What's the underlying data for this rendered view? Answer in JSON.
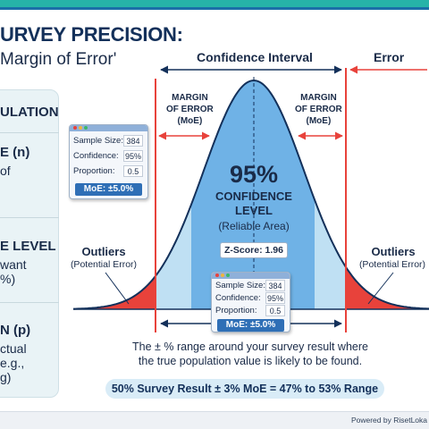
{
  "header": {
    "title": "URVEY PRECISION:",
    "subtitle": "Margin of Error'"
  },
  "side_panel": {
    "sections": [
      {
        "heading": "ULATION"
      },
      {
        "heading": "E (n)",
        "lines": [
          "of"
        ]
      },
      {
        "heading": "E LEVEL",
        "lines": [
          "want",
          "%)"
        ]
      },
      {
        "heading": "N (p)",
        "lines": [
          "ctual",
          "e.g.,",
          "g)"
        ]
      }
    ]
  },
  "top_labels": {
    "confidence_interval": "Confidence Interval",
    "error": "Error"
  },
  "moe_labels": {
    "left": [
      "MARGIN",
      "OF ERROR",
      "(MoE)"
    ],
    "right": [
      "MARGIN",
      "OF ERROR",
      "(MoE)"
    ]
  },
  "center": {
    "percent": "95%",
    "line1": "CONFIDENCE",
    "line2": "LEVEL",
    "caption": "(Reliable Area)",
    "zscore": "Z-Score: 1.96"
  },
  "outliers": {
    "left_title": "Outliers",
    "left_sub": "(Potential Error)",
    "right_title": "Outliers",
    "right_sub": "(Potential Error)"
  },
  "card_left": {
    "rows": [
      {
        "label": "Sample Size:",
        "value": "384"
      },
      {
        "label": "Confidence:",
        "value": "95%"
      },
      {
        "label": "Proportion:",
        "value": "0.5"
      }
    ],
    "moe": "MoE: ±5.0%"
  },
  "card_bottom": {
    "rows": [
      {
        "label": "Sample Size:",
        "value": "384"
      },
      {
        "label": "Confidence:",
        "value": "95%"
      },
      {
        "label": "Proportion:",
        "value": "0.5"
      }
    ],
    "moe": "MoE: ±5.0%"
  },
  "description": {
    "line1": "The ± % range around your survey result where",
    "line2": "the true population value is likely to be found."
  },
  "example": "50% Survey Result ± 3% MoE = 47% to 53% Range",
  "footer": "Powered by RisetLoka",
  "colors": {
    "navy": "#13305a",
    "curve_blue": "#6fb2e6",
    "inner_blue": "#bfe0f3",
    "tail_red": "#e8423b",
    "teal": "#26b3a8"
  }
}
